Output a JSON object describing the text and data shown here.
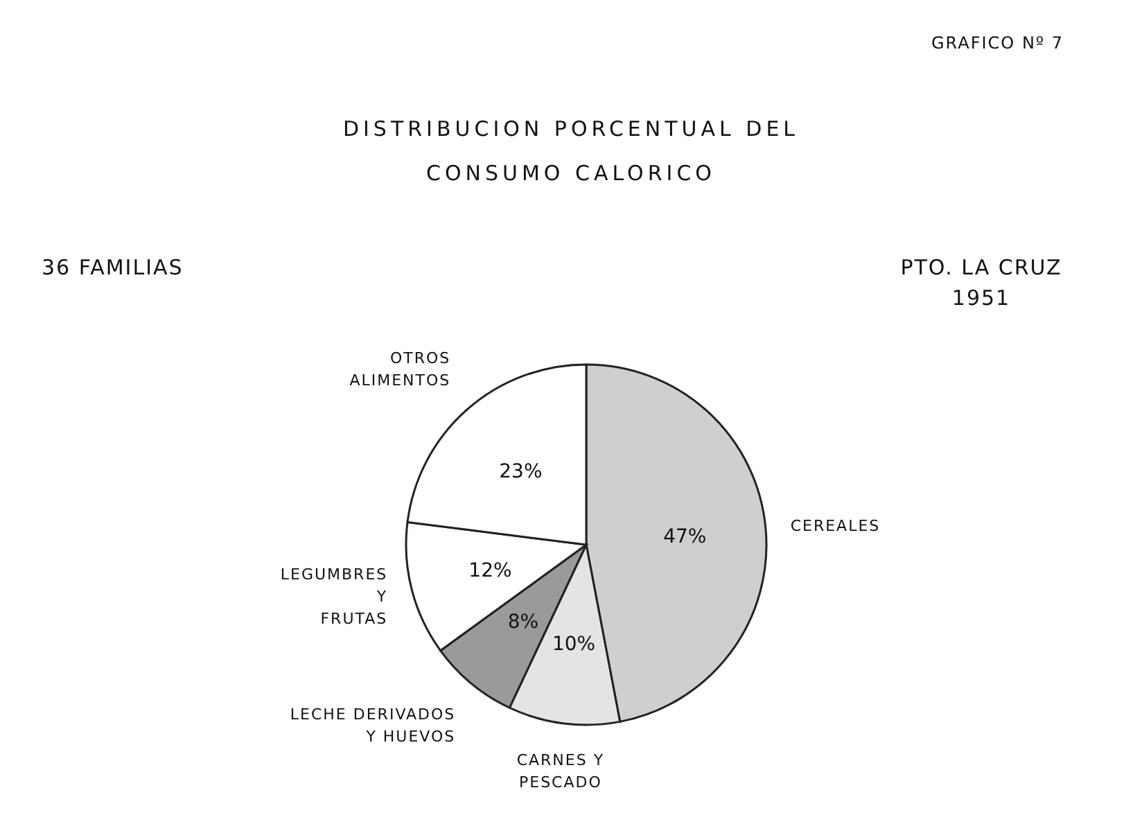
{
  "chart_data": {
    "type": "pie",
    "title": "DISTRIBUCION PORCENTUAL DEL\nCONSUMO CALORICO",
    "subtitle": "36 FAMILIAS",
    "annotations": [
      "PTO. LA CRUZ\n1951",
      "GRAFICO Nº 7"
    ],
    "categories": [
      "CEREALES",
      "CARNES Y\nPESCADO",
      "LECHE DERIVADOS\nY HUEVOS",
      "LEGUMBRES\nY\nFRUTAS",
      "OTROS\nALIMENTOS"
    ],
    "values": [
      47,
      10,
      8,
      12,
      23
    ],
    "value_labels": [
      "47%",
      "10%",
      "8%",
      "12%",
      "23%"
    ],
    "colors": [
      "#cfcfcf",
      "#e4e4e4",
      "#9a9a9a",
      "#ffffff",
      "#ffffff"
    ],
    "legend": false
  }
}
